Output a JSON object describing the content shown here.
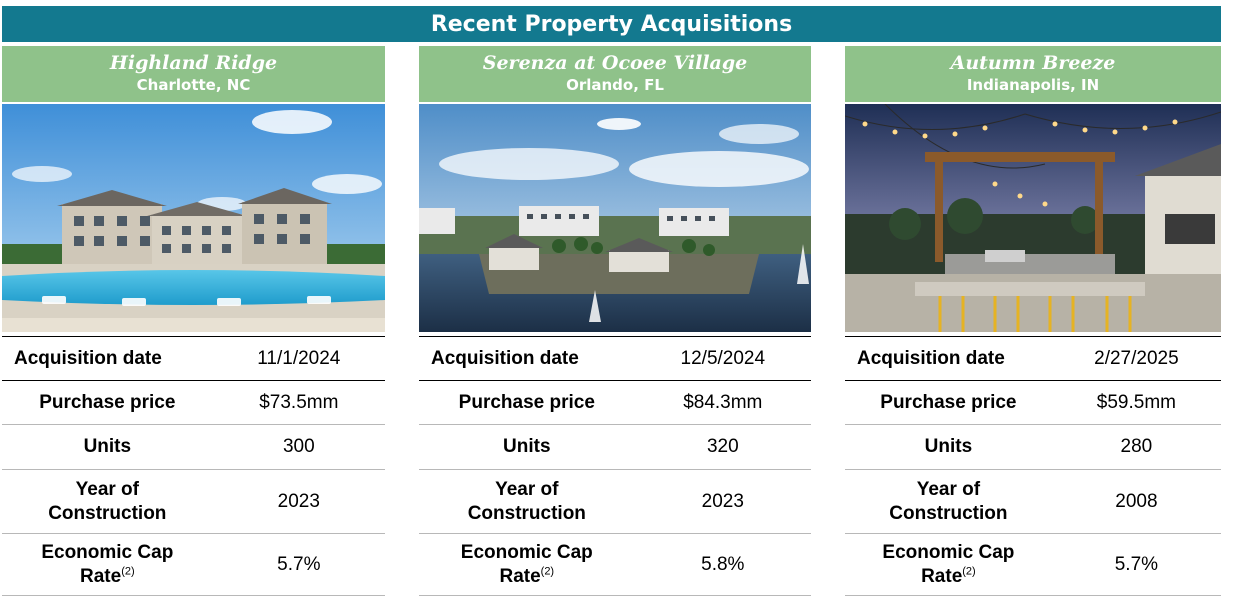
{
  "banner_title": "Recent Property Acquisitions",
  "labels": {
    "acquisition_date": "Acquisition date",
    "purchase_price": "Purchase price",
    "units": "Units",
    "year_line1": "Year of",
    "year_line2": "Construction",
    "cap_line1": "Economic Cap",
    "cap_line2": "Rate",
    "cap_footnote": "(2)"
  },
  "properties": [
    {
      "name": "Highland Ridge",
      "location": "Charlotte, NC",
      "photo_icon": "apartment-pool-photo",
      "acquisition_date": "11/1/2024",
      "purchase_price": "$73.5mm",
      "units": "300",
      "year_of_construction": "2023",
      "economic_cap_rate": "5.7%"
    },
    {
      "name": "Serenza at Ocoee Village",
      "location": "Orlando, FL",
      "photo_icon": "aerial-lake-community-photo",
      "acquisition_date": "12/5/2024",
      "purchase_price": "$84.3mm",
      "units": "320",
      "year_of_construction": "2023",
      "economic_cap_rate": "5.8%"
    },
    {
      "name": "Autumn Breeze",
      "location": "Indianapolis, IN",
      "photo_icon": "outdoor-pergola-grill-photo",
      "acquisition_date": "2/27/2025",
      "purchase_price": "$59.5mm",
      "units": "280",
      "year_of_construction": "2008",
      "economic_cap_rate": "5.7%"
    }
  ],
  "colors": {
    "banner": "#13798f",
    "card_header": "#8fc28a"
  }
}
